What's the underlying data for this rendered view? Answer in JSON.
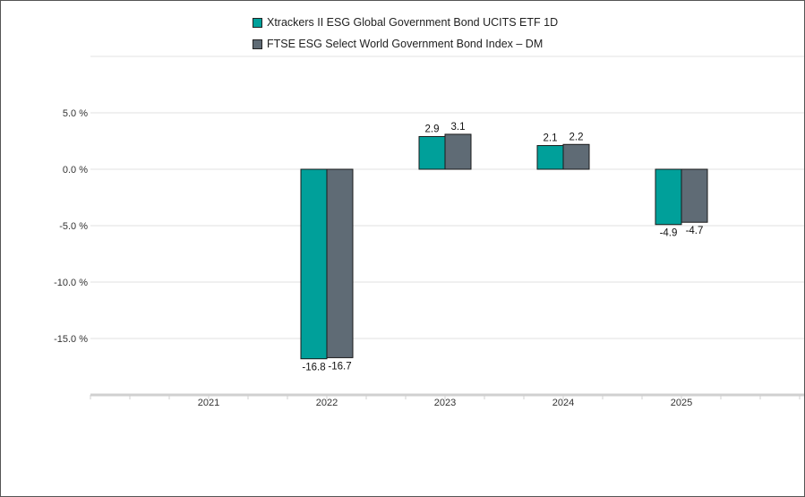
{
  "chart_data": {
    "type": "bar",
    "categories": [
      "2021",
      "2022",
      "2023",
      "2024",
      "2025"
    ],
    "series": [
      {
        "name": "Xtrackers II ESG Global Government Bond UCITS ETF 1D",
        "color": "#00a09a",
        "values": [
          null,
          -16.8,
          2.9,
          2.1,
          -4.9
        ]
      },
      {
        "name": "FTSE ESG Select World Government Bond Index – DM",
        "color": "#5f6b75",
        "values": [
          null,
          -16.7,
          3.1,
          2.2,
          -4.7
        ]
      }
    ],
    "data_labels": [
      [
        null,
        "-16.8",
        "2.9",
        "2.1",
        "-4.9"
      ],
      [
        null,
        "-16.7",
        "3.1",
        "2.2",
        "-4.7"
      ]
    ],
    "y_ticks": [
      5.0,
      0.0,
      -5.0,
      -10.0,
      -15.0
    ],
    "y_tick_labels": [
      "5.0 %",
      "0.0 %",
      "-5.0 %",
      "-10.0 %",
      "-15.0 %"
    ],
    "ylim": [
      -20,
      10
    ],
    "grid": true,
    "legend_position": "top-center",
    "title": "",
    "xlabel": "",
    "ylabel": ""
  }
}
